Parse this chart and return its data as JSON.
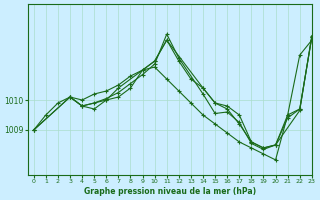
{
  "title": "Graphe pression niveau de la mer (hPa)",
  "background_color": "#cceeff",
  "grid_color": "#aaddcc",
  "line_color": "#1a6b1a",
  "xlim": [
    -0.5,
    23
  ],
  "ylim": [
    1007.5,
    1013.2
  ],
  "yticks": [
    1009,
    1010
  ],
  "xticks": [
    0,
    1,
    2,
    3,
    4,
    5,
    6,
    7,
    8,
    9,
    10,
    11,
    12,
    13,
    14,
    15,
    16,
    17,
    18,
    19,
    20,
    21,
    22,
    23
  ],
  "series": [
    {
      "x": [
        0,
        1,
        2,
        3,
        4,
        5,
        6,
        7,
        8,
        9,
        10,
        11,
        12,
        13,
        14,
        15,
        16,
        17,
        18,
        19,
        20,
        21,
        22,
        23
      ],
      "y": [
        1009.0,
        1009.5,
        1009.9,
        1010.1,
        1010.0,
        1010.2,
        1010.3,
        1010.5,
        1010.8,
        1011.0,
        1011.1,
        1010.7,
        1010.3,
        1009.9,
        1009.5,
        1009.2,
        1008.9,
        1008.6,
        1008.4,
        1008.2,
        1008.0,
        1009.5,
        1011.5,
        1012.0
      ]
    },
    {
      "x": [
        0,
        3,
        4,
        5,
        6,
        7,
        8,
        9,
        10,
        11,
        12,
        13,
        14,
        15,
        16,
        17,
        18,
        19,
        20,
        21,
        22,
        23
      ],
      "y": [
        1009.0,
        1010.1,
        1009.8,
        1009.7,
        1010.0,
        1010.1,
        1010.4,
        1011.0,
        1011.3,
        1012.0,
        1011.3,
        1010.7,
        1010.4,
        1009.9,
        1009.8,
        1009.5,
        1008.6,
        1008.4,
        1008.5,
        1009.5,
        1009.7,
        1012.1
      ]
    },
    {
      "x": [
        0,
        3,
        4,
        6,
        7,
        10,
        11,
        14,
        15,
        16,
        17,
        18,
        19,
        20,
        21,
        22,
        23
      ],
      "y": [
        1009.0,
        1010.1,
        1009.8,
        1010.0,
        1010.4,
        1011.3,
        1012.0,
        1010.4,
        1009.9,
        1009.7,
        1009.2,
        1008.6,
        1008.4,
        1008.5,
        1009.4,
        1009.7,
        1012.1
      ]
    },
    {
      "x": [
        3,
        4,
        5,
        6,
        7,
        8,
        9,
        10,
        11,
        12,
        14,
        15,
        16,
        17,
        18,
        19,
        20,
        22,
        23
      ],
      "y": [
        1010.1,
        1009.8,
        1009.9,
        1010.05,
        1010.25,
        1010.55,
        1010.85,
        1011.2,
        1012.2,
        1011.4,
        1010.2,
        1009.55,
        1009.6,
        1009.25,
        1008.55,
        1008.35,
        1008.5,
        1009.65,
        1012.15
      ]
    }
  ]
}
